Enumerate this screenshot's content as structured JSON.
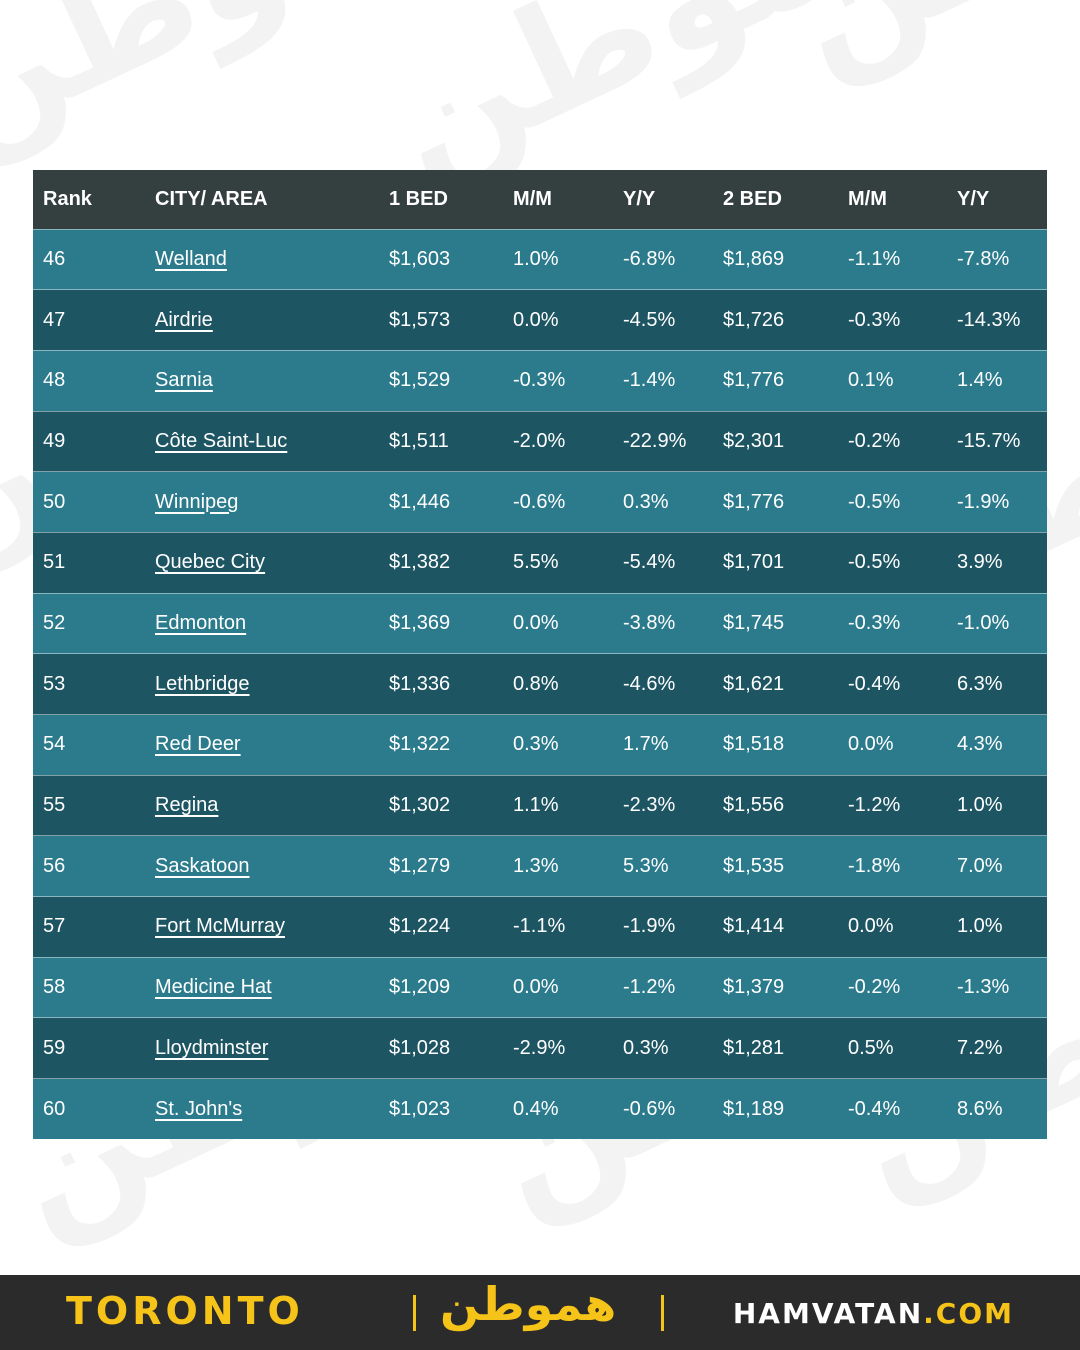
{
  "watermark_text": "هموطن",
  "table": {
    "headers": [
      "Rank",
      "CITY/ AREA",
      "1 BED",
      "M/M",
      "Y/Y",
      "2 BED",
      "M/M",
      "Y/Y"
    ],
    "rows": [
      [
        "46",
        "Welland",
        "$1,603",
        "1.0%",
        "-6.8%",
        "$1,869",
        "-1.1%",
        "-7.8%"
      ],
      [
        "47",
        "Airdrie",
        "$1,573",
        "0.0%",
        "-4.5%",
        "$1,726",
        "-0.3%",
        "-14.3%"
      ],
      [
        "48",
        "Sarnia",
        "$1,529",
        "-0.3%",
        "-1.4%",
        "$1,776",
        "0.1%",
        "1.4%"
      ],
      [
        "49",
        "Côte Saint-Luc",
        "$1,511",
        "-2.0%",
        "-22.9%",
        "$2,301",
        "-0.2%",
        "-15.7%"
      ],
      [
        "50",
        "Winnipeg",
        "$1,446",
        "-0.6%",
        "0.3%",
        "$1,776",
        "-0.5%",
        "-1.9%"
      ],
      [
        "51",
        "Quebec City",
        "$1,382",
        "5.5%",
        "-5.4%",
        "$1,701",
        "-0.5%",
        "3.9%"
      ],
      [
        "52",
        "Edmonton",
        "$1,369",
        "0.0%",
        "-3.8%",
        "$1,745",
        "-0.3%",
        "-1.0%"
      ],
      [
        "53",
        "Lethbridge",
        "$1,336",
        "0.8%",
        "-4.6%",
        "$1,621",
        "-0.4%",
        "6.3%"
      ],
      [
        "54",
        "Red Deer",
        "$1,322",
        "0.3%",
        "1.7%",
        "$1,518",
        "0.0%",
        "4.3%"
      ],
      [
        "55",
        "Regina",
        "$1,302",
        "1.1%",
        "-2.3%",
        "$1,556",
        "-1.2%",
        "1.0%"
      ],
      [
        "56",
        "Saskatoon",
        "$1,279",
        "1.3%",
        "5.3%",
        "$1,535",
        "-1.8%",
        "7.0%"
      ],
      [
        "57",
        "Fort McMurray",
        "$1,224",
        "-1.1%",
        "-1.9%",
        "$1,414",
        "0.0%",
        "1.0%"
      ],
      [
        "58",
        "Medicine Hat",
        "$1,209",
        "0.0%",
        "-1.2%",
        "$1,379",
        "-0.2%",
        "-1.3%"
      ],
      [
        "59",
        "Lloydminster",
        "$1,028",
        "-2.9%",
        "0.3%",
        "$1,281",
        "0.5%",
        "7.2%"
      ],
      [
        "60",
        "St. John's",
        "$1,023",
        "0.4%",
        "-0.6%",
        "$1,189",
        "-0.4%",
        "8.6%"
      ]
    ]
  },
  "footer": {
    "city": "TORONTO",
    "logo": "هموطن",
    "site_name": "HAMVATAN",
    "site_tld": ".COM"
  },
  "colors": {
    "header_bg": "#343f40",
    "row_light": "#2b7b8c",
    "row_dark": "#1e5563",
    "footer_bg": "#2b2b2b",
    "accent_yellow": "#f6c419"
  }
}
